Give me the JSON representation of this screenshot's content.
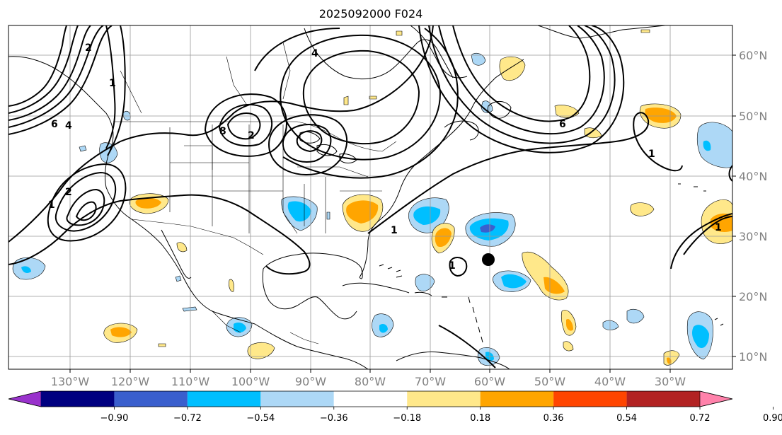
{
  "title": "2025092000 F024",
  "map": {
    "lon_labels": [
      "130°W",
      "120°W",
      "110°W",
      "100°W",
      "90°W",
      "80°W",
      "70°W",
      "60°W",
      "50°W",
      "40°W",
      "30°W"
    ],
    "lat_labels": [
      "60°N",
      "50°N",
      "40°N",
      "30°N",
      "20°N",
      "10°N"
    ],
    "contour_labels": [
      "2",
      "4",
      "6",
      "8",
      "1"
    ],
    "storm_marker": "black-dot",
    "colors": {
      "purple": "#9932cc",
      "navy": "#000080",
      "royal": "#3a5fcd",
      "deepsky": "#00bfff",
      "lightblue": "#add8f6",
      "white": "#ffffff",
      "lightyellow": "#ffe88a",
      "orange": "#ffa500",
      "redorange": "#ff4500",
      "firebrick": "#b22222",
      "pink": "#ff82ab"
    }
  },
  "colorbar": {
    "ticks": [
      "−0.90",
      "−0.72",
      "−0.54",
      "−0.36",
      "−0.18",
      "0.18",
      "0.36",
      "0.54",
      "0.72",
      "0.90"
    ],
    "segments": [
      "#9932cc",
      "#000080",
      "#3a5fcd",
      "#00bfff",
      "#add8f6",
      "#ffffff",
      "#ffe88a",
      "#ffa500",
      "#ff4500",
      "#b22222",
      "#ff82ab"
    ]
  }
}
